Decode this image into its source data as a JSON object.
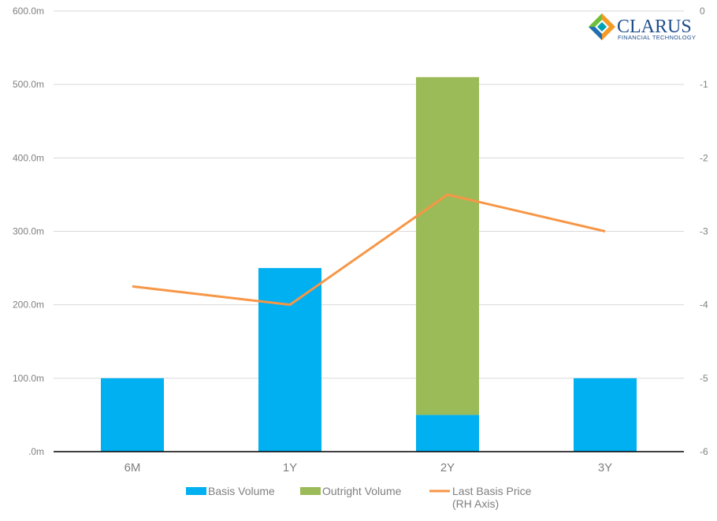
{
  "logo": {
    "name": "CLARUS",
    "tagline": "FINANCIAL TECHNOLOGY"
  },
  "chart_data": {
    "type": "bar",
    "stacked": true,
    "title": "",
    "categories": [
      "6M",
      "1Y",
      "2Y",
      "3Y"
    ],
    "series": [
      {
        "name": "Basis Volume",
        "type": "bar",
        "axis": "left",
        "color": "#00b0f0",
        "values": [
          100,
          250,
          50,
          100
        ]
      },
      {
        "name": "Outright Volume",
        "type": "bar",
        "axis": "left",
        "color": "#9bbb59",
        "values": [
          0,
          0,
          460,
          0
        ]
      },
      {
        "name": "Last Basis Price",
        "name_line2": "(RH Axis)",
        "type": "line",
        "axis": "right",
        "color": "#f79646",
        "values": [
          -3.75,
          -4.0,
          -2.5,
          -3.0
        ]
      }
    ],
    "left_axis": {
      "ylim": [
        0,
        600
      ],
      "ticks": [
        0,
        100,
        200,
        300,
        400,
        500,
        600
      ],
      "tick_labels": [
        ".0m",
        "100.0m",
        "200.0m",
        "300.0m",
        "400.0m",
        "500.0m",
        "600.0m"
      ]
    },
    "right_axis": {
      "ylim": [
        -6,
        0
      ],
      "ticks": [
        -6,
        -5,
        -4,
        -3,
        -2,
        -1,
        0
      ],
      "tick_labels": [
        "-6",
        "-5",
        "-4",
        "-3",
        "-2",
        "-1",
        "0"
      ]
    },
    "grid": true,
    "legend_position": "bottom"
  }
}
